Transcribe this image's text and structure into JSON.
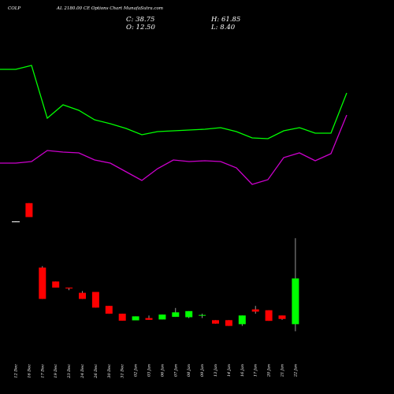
{
  "header": {
    "ticker": "COLP",
    "subtitle": "AL 2180.00 CE Options Chart MunafaSutra.com",
    "close": "C: 38.75",
    "high": "H: 61.85",
    "open": "O: 12.50",
    "low": "L: 8.40"
  },
  "chart_data": {
    "type": "candlestick",
    "categories": [
      "12 Dec",
      "16 Dec",
      "17 Dec",
      "19 Dec",
      "23 Dec",
      "24 Dec",
      "26 Dec",
      "30 Dec",
      "31 Dec",
      "02 Jan",
      "03 Jan",
      "06 Jan",
      "07 Jan",
      "08 Jan",
      "09 Jan",
      "13 Jan",
      "14 Jan",
      "16 Jan",
      "17 Jan",
      "20 Jan",
      "21 Jan",
      "22 Jan"
    ],
    "candles": [
      {
        "o": 71.5,
        "h": 71.6,
        "l": 71.4,
        "c": 71.5
      },
      {
        "o": 82,
        "h": 82,
        "l": 74,
        "c": 74
      },
      {
        "o": 45,
        "h": 45.8,
        "l": 27,
        "c": 27
      },
      {
        "o": 37,
        "h": 37,
        "l": 33.5,
        "c": 33.5
      },
      {
        "o": 33.5,
        "h": 33.5,
        "l": 32,
        "c": 33
      },
      {
        "o": 30.5,
        "h": 31.5,
        "l": 27,
        "c": 27
      },
      {
        "o": 31,
        "h": 31,
        "l": 22,
        "c": 22
      },
      {
        "o": 23,
        "h": 23,
        "l": 18.5,
        "c": 18.5
      },
      {
        "o": 18.5,
        "h": 18.5,
        "l": 14.5,
        "c": 14.5
      },
      {
        "o": 14.7,
        "h": 17,
        "l": 14.7,
        "c": 17
      },
      {
        "o": 16,
        "h": 17.5,
        "l": 15,
        "c": 15
      },
      {
        "o": 15.2,
        "h": 18,
        "l": 15.2,
        "c": 18
      },
      {
        "o": 16.7,
        "h": 21.8,
        "l": 16.7,
        "c": 19.3
      },
      {
        "o": 16.5,
        "h": 20,
        "l": 16,
        "c": 20
      },
      {
        "o": 17.4,
        "h": 18.5,
        "l": 16,
        "c": 17.8
      },
      {
        "o": 14.8,
        "h": 14.8,
        "l": 12.8,
        "c": 12.8
      },
      {
        "o": 14.8,
        "h": 14.8,
        "l": 11.5,
        "c": 11.5
      },
      {
        "o": 12.5,
        "h": 17.5,
        "l": 11.5,
        "c": 17.5
      },
      {
        "o": 21,
        "h": 23,
        "l": 18.5,
        "c": 19.7
      },
      {
        "o": 20.5,
        "h": 20.5,
        "l": 14.4,
        "c": 14.4
      },
      {
        "o": 17.5,
        "h": 17.5,
        "l": 15,
        "c": 15.5
      },
      {
        "o": 12.5,
        "h": 61.85,
        "l": 8.4,
        "c": 38.75
      }
    ],
    "overlay_top": [
      88,
      88,
      83,
      150,
      133,
      140,
      152,
      157,
      163,
      171,
      167,
      166,
      165,
      164,
      162,
      167,
      175,
      176,
      166,
      162,
      169,
      169,
      118
    ],
    "overlay_bottom": [
      207,
      207,
      205,
      191,
      193,
      194,
      203,
      207,
      218,
      229,
      214,
      203,
      205,
      204,
      205,
      213,
      234,
      228,
      200,
      194,
      204,
      195,
      146
    ],
    "colors": {
      "up": "#00ff00",
      "down": "#ff0000",
      "flat": "#ffffff",
      "overlay_top": "#00ff00",
      "overlay_bottom": "#cc00cc",
      "background": "#000000"
    }
  }
}
